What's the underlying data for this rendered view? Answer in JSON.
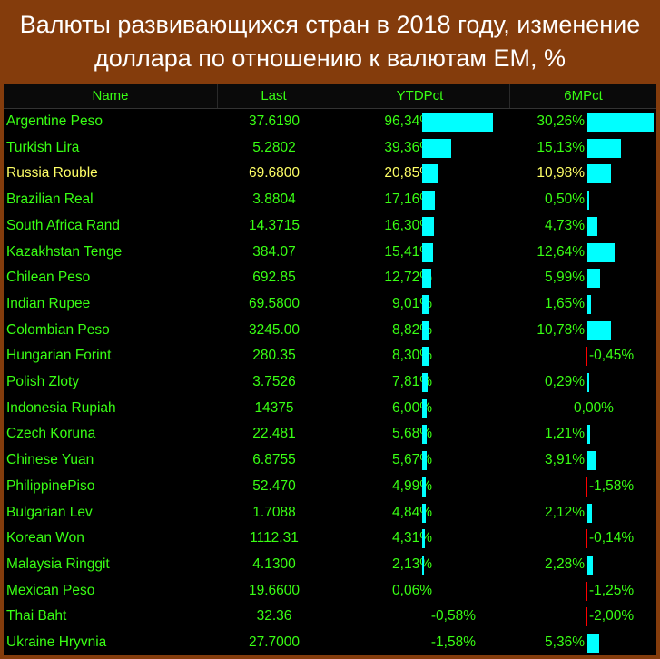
{
  "title": {
    "line1": "Валюты развивающихся стран в 2018 году, изменение",
    "line2": "доллара по отношению к валютам ЕМ, %"
  },
  "headers": {
    "name": "Name",
    "last": "Last",
    "ytd": "YTDPct",
    "six": "6MPct"
  },
  "colors": {
    "background": "#843c0c",
    "table": "#000000",
    "text": "#39ff14",
    "highlight": "#ffff66",
    "bar_positive": "#00ffff",
    "bar_negative": "#ff0000"
  },
  "chart_data": {
    "type": "table",
    "columns": [
      "Name",
      "Last",
      "YTDPct",
      "6MPct"
    ],
    "rows": [
      {
        "name": "Argentine Peso",
        "last": "37.6190",
        "ytd": "96,34%",
        "six": "30,26%",
        "ytd_value": 96.34,
        "six_value": 30.26
      },
      {
        "name": "Turkish Lira",
        "last": "5.2802",
        "ytd": "39,36%",
        "six": "15,13%",
        "ytd_value": 39.36,
        "six_value": 15.13
      },
      {
        "name": "Russia Rouble",
        "last": "69.6800",
        "ytd": "20,85%",
        "six": "10,98%",
        "ytd_value": 20.85,
        "six_value": 10.98,
        "highlight": true
      },
      {
        "name": "Brazilian Real",
        "last": "3.8804",
        "ytd": "17,16%",
        "six": "0,50%",
        "ytd_value": 17.16,
        "six_value": 0.5
      },
      {
        "name": "South Africa Rand",
        "last": "14.3715",
        "ytd": "16,30%",
        "six": "4,73%",
        "ytd_value": 16.3,
        "six_value": 4.73
      },
      {
        "name": "Kazakhstan Tenge",
        "last": "384.07",
        "ytd": "15,41%",
        "six": "12,64%",
        "ytd_value": 15.41,
        "six_value": 12.64
      },
      {
        "name": "Chilean Peso",
        "last": "692.85",
        "ytd": "12,72%",
        "six": "5,99%",
        "ytd_value": 12.72,
        "six_value": 5.99
      },
      {
        "name": "Indian Rupee",
        "last": "69.5800",
        "ytd": "9,01%",
        "six": "1,65%",
        "ytd_value": 9.01,
        "six_value": 1.65
      },
      {
        "name": "Colombian Peso",
        "last": "3245.00",
        "ytd": "8,82%",
        "six": "10,78%",
        "ytd_value": 8.82,
        "six_value": 10.78
      },
      {
        "name": "Hungarian Forint",
        "last": "280.35",
        "ytd": "8,30%",
        "six": "-0,45%",
        "ytd_value": 8.3,
        "six_value": -0.45
      },
      {
        "name": "Polish Zloty",
        "last": "3.7526",
        "ytd": "7,81%",
        "six": "0,29%",
        "ytd_value": 7.81,
        "six_value": 0.29
      },
      {
        "name": "Indonesia Rupiah",
        "last": "14375",
        "ytd": "6,00%",
        "six": "0,00%",
        "ytd_value": 6.0,
        "six_value": 0.0
      },
      {
        "name": "Czech Koruna",
        "last": "22.481",
        "ytd": "5,68%",
        "six": "1,21%",
        "ytd_value": 5.68,
        "six_value": 1.21
      },
      {
        "name": "Chinese Yuan",
        "last": "6.8755",
        "ytd": "5,67%",
        "six": "3,91%",
        "ytd_value": 5.67,
        "six_value": 3.91
      },
      {
        "name": "PhilippinePiso",
        "last": "52.470",
        "ytd": "4,99%",
        "six": "-1,58%",
        "ytd_value": 4.99,
        "six_value": -1.58
      },
      {
        "name": "Bulgarian Lev",
        "last": "1.7088",
        "ytd": "4,84%",
        "six": "2,12%",
        "ytd_value": 4.84,
        "six_value": 2.12
      },
      {
        "name": "Korean Won",
        "last": "1112.31",
        "ytd": "4,31%",
        "six": "-0,14%",
        "ytd_value": 4.31,
        "six_value": -0.14
      },
      {
        "name": "Malaysia Ringgit",
        "last": "4.1300",
        "ytd": "2,13%",
        "six": "2,28%",
        "ytd_value": 2.13,
        "six_value": 2.28
      },
      {
        "name": "Mexican Peso",
        "last": "19.6600",
        "ytd": "0,06%",
        "six": "-1,25%",
        "ytd_value": 0.06,
        "six_value": -1.25
      },
      {
        "name": "Thai Baht",
        "last": "32.36",
        "ytd": "-0,58%",
        "six": "-2,00%",
        "ytd_value": -0.58,
        "six_value": -2.0
      },
      {
        "name": "Ukraine Hryvnia",
        "last": "27.7000",
        "ytd": "-1,58%",
        "six": "5,36%",
        "ytd_value": -1.58,
        "six_value": 5.36
      }
    ]
  }
}
